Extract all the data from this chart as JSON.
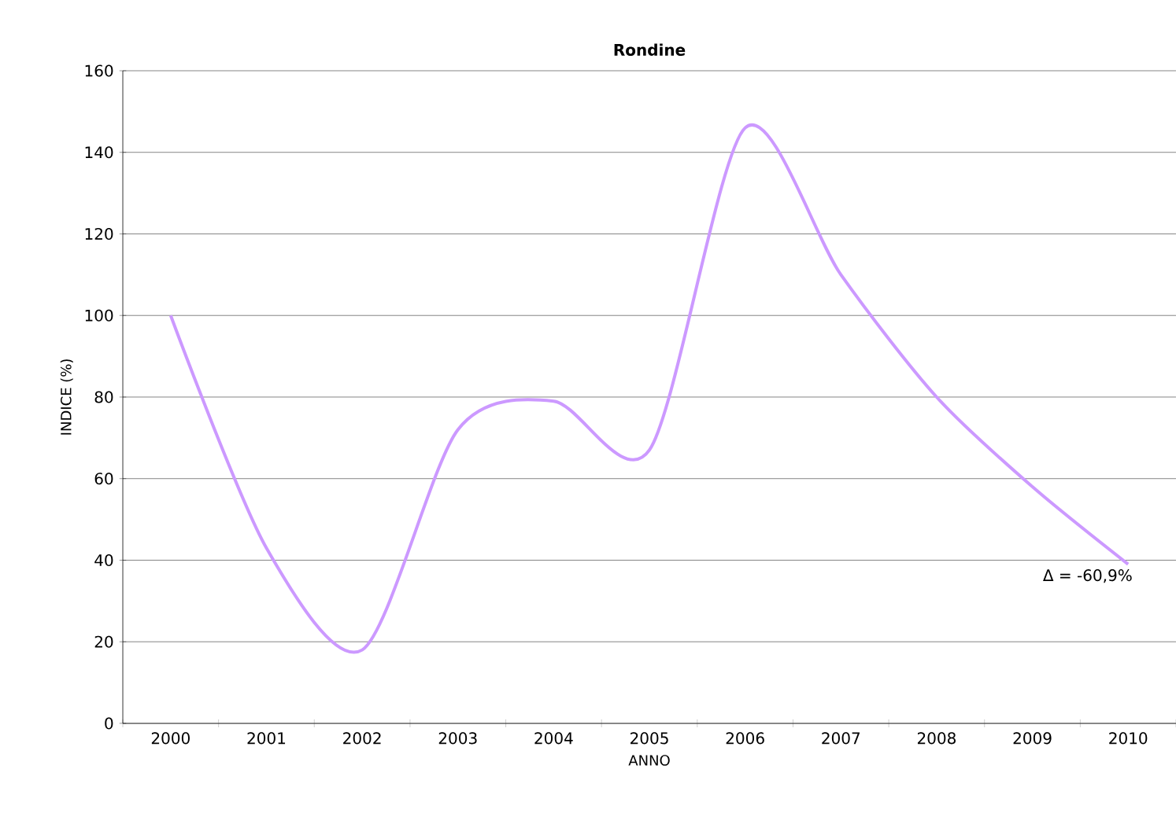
{
  "chart_data": {
    "type": "line",
    "title": "Rondine",
    "xlabel": "ANNO",
    "ylabel": "INDICE (%)",
    "categories": [
      "2000",
      "2001",
      "2002",
      "2003",
      "2004",
      "2005",
      "2006",
      "2007",
      "2008",
      "2009",
      "2010"
    ],
    "series": [
      {
        "color": "#cc99ff",
        "values": [
          100,
          43,
          18,
          72,
          79,
          67,
          146,
          110,
          80,
          58,
          39
        ]
      }
    ],
    "ylim": [
      0,
      160
    ],
    "yticks": [
      0,
      20,
      40,
      60,
      80,
      100,
      120,
      140,
      160
    ],
    "grid": "y",
    "annotations": [
      {
        "text": "Δ = -60,9%",
        "x": "2010",
        "y": 39
      }
    ]
  }
}
